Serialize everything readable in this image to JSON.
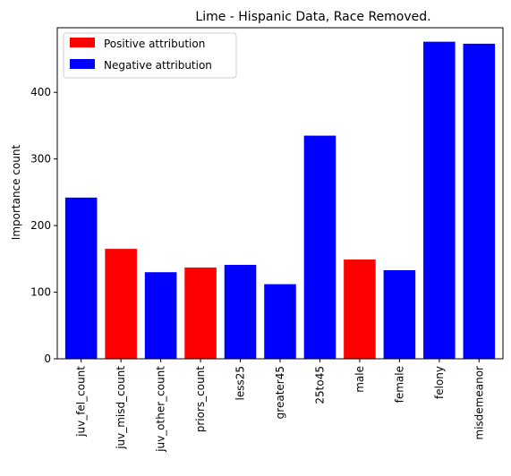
{
  "chart_data": {
    "type": "bar",
    "title": "Lime - Hispanic Data, Race Removed.",
    "xlabel": "",
    "ylabel": "Importance count",
    "ylim": [
      0,
      497
    ],
    "yticks": [
      0,
      100,
      200,
      300,
      400
    ],
    "grid": false,
    "legend_position": "top-left",
    "legend": [
      {
        "label": "Positive attribution",
        "color": "#ff0000"
      },
      {
        "label": "Negative attribution",
        "color": "#0000ff"
      }
    ],
    "categories": [
      "juv_fel_count",
      "juv_misd_count",
      "juv_other_count",
      "priors_count",
      "less25",
      "greater45",
      "25to45",
      "male",
      "female",
      "felony",
      "misdemeanor"
    ],
    "values": [
      242,
      165,
      130,
      137,
      141,
      112,
      335,
      149,
      133,
      476,
      473
    ],
    "attribution": [
      "negative",
      "positive",
      "negative",
      "positive",
      "negative",
      "negative",
      "negative",
      "positive",
      "negative",
      "negative",
      "negative"
    ],
    "colors": {
      "positive": "#ff0000",
      "negative": "#0000ff"
    }
  }
}
